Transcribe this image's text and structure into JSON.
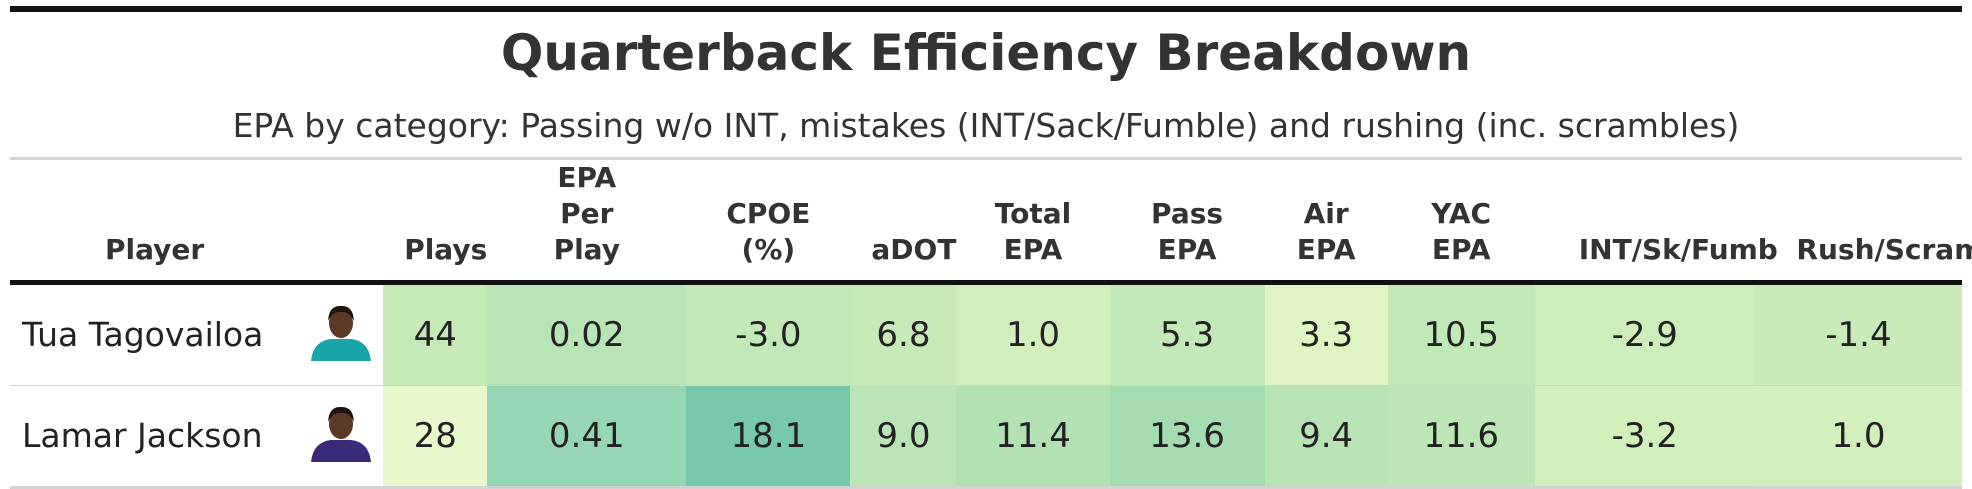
{
  "title": "Quarterback Efficiency Breakdown",
  "subtitle": "EPA by category: Passing w/o INT, mistakes (INT/Sack/Fumble) and rushing (inc. scrambles)",
  "table": {
    "headers": [
      "Player",
      "Plays",
      "EPA Per Play",
      "CPOE (%)",
      "aDOT",
      "Total EPA",
      "Pass EPA",
      "Air EPA",
      "YAC EPA",
      "INT/Sk/Fumb",
      "Rush/Scram"
    ],
    "rows": [
      {
        "player": "Tua Tagovailoa",
        "headshot_color": "#1aa6a8",
        "cells": [
          "44",
          "0.02",
          "-3.0",
          "6.8",
          "1.0",
          "5.3",
          "3.3",
          "10.5",
          "-2.9",
          "-1.4"
        ],
        "colors": [
          "#c5e9b7",
          "#b9e4b6",
          "#c2e8b8",
          "#c8eab8",
          "#d2eebc",
          "#c4e9b8",
          "#e0f4c3",
          "#c1e8b7",
          "#cdeebb",
          "#c9ebb9"
        ]
      },
      {
        "player": "Lamar Jackson",
        "headshot_color": "#3b2a78",
        "cells": [
          "28",
          "0.41",
          "18.1",
          "9.0",
          "11.4",
          "13.6",
          "9.4",
          "11.6",
          "-3.2",
          "1.0"
        ],
        "colors": [
          "#e9f7cc",
          "#97d6b4",
          "#78c8ad",
          "#bbe5b7",
          "#b3e1b4",
          "#a5dbb1",
          "#b8e4b5",
          "#bde6b6",
          "#d1efbb",
          "#d2efbd"
        ]
      }
    ]
  }
}
